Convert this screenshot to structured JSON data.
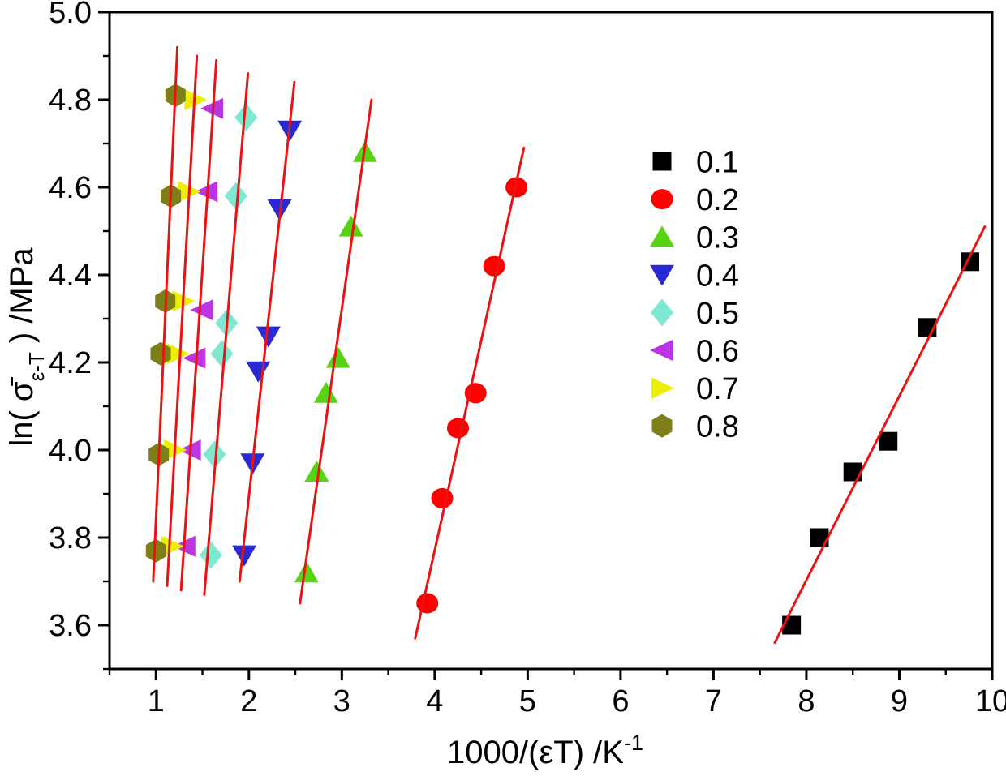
{
  "figure": {
    "background": "#ffffff"
  },
  "chart_data": {
    "type": "scatter",
    "title": "",
    "xlabel": "1000/(εT) /K⁻¹",
    "xlabel_parts": {
      "main": "1000/(εT) /K",
      "superscript": "-1"
    },
    "ylabel": "ln(σ̄ ε-T) /MPa",
    "ylabel_parts": {
      "prefix": "ln( ",
      "sigma_bar": "σ̄",
      "subscript": "ε-T",
      "suffix": " ) /MPa"
    },
    "xlim": [
      0.5,
      10
    ],
    "ylim": [
      3.5,
      5.0
    ],
    "x_major_ticks": [
      1,
      2,
      3,
      4,
      5,
      6,
      7,
      8,
      9,
      10
    ],
    "x_minor_step": 0.5,
    "y_major_ticks": [
      3.6,
      3.8,
      4.0,
      4.2,
      4.4,
      4.6,
      4.8,
      5.0
    ],
    "y_minor_step": 0.1,
    "grid": false,
    "legend_position": "inside-upper-right",
    "fit_line_color": "#ee1111",
    "axis_color": "#000000",
    "series": [
      {
        "label": "0.1",
        "marker": "square",
        "color": "#000000",
        "points": [
          [
            7.84,
            3.6
          ],
          [
            8.14,
            3.8
          ],
          [
            8.5,
            3.95
          ],
          [
            8.88,
            4.02
          ],
          [
            9.3,
            4.28
          ],
          [
            9.76,
            4.43
          ]
        ],
        "fit_line": [
          7.66,
          3.56,
          9.92,
          4.51
        ]
      },
      {
        "label": "0.2",
        "marker": "circle",
        "color": "#ff0000",
        "points": [
          [
            3.92,
            3.65
          ],
          [
            4.08,
            3.89
          ],
          [
            4.25,
            4.05
          ],
          [
            4.44,
            4.13
          ],
          [
            4.64,
            4.42
          ],
          [
            4.88,
            4.6
          ]
        ],
        "fit_line": [
          3.79,
          3.57,
          4.96,
          4.69
        ]
      },
      {
        "label": "0.3",
        "marker": "triangle-up",
        "color": "#58d313",
        "points": [
          [
            2.62,
            3.72
          ],
          [
            2.73,
            3.95
          ],
          [
            2.83,
            4.13
          ],
          [
            2.96,
            4.21
          ],
          [
            3.1,
            4.51
          ],
          [
            3.25,
            4.68
          ]
        ],
        "fit_line": [
          2.55,
          3.65,
          3.32,
          4.8
        ]
      },
      {
        "label": "0.4",
        "marker": "triangle-down",
        "color": "#2a2ad4",
        "points": [
          [
            1.95,
            3.76
          ],
          [
            2.04,
            3.97
          ],
          [
            2.1,
            4.18
          ],
          [
            2.21,
            4.26
          ],
          [
            2.33,
            4.55
          ],
          [
            2.44,
            4.73
          ]
        ],
        "fit_line": [
          1.9,
          3.7,
          2.49,
          4.84
        ]
      },
      {
        "label": "0.5",
        "marker": "diamond",
        "color": "#7fe8d0",
        "points": [
          [
            1.59,
            3.76
          ],
          [
            1.63,
            3.99
          ],
          [
            1.71,
            4.22
          ],
          [
            1.76,
            4.29
          ],
          [
            1.86,
            4.58
          ],
          [
            1.97,
            4.76
          ]
        ],
        "fit_line": [
          1.52,
          3.67,
          1.99,
          4.86
        ]
      },
      {
        "label": "0.6",
        "marker": "triangle-left",
        "color": "#bb35e3",
        "points": [
          [
            1.31,
            3.78
          ],
          [
            1.37,
            4.0
          ],
          [
            1.42,
            4.21
          ],
          [
            1.5,
            4.32
          ],
          [
            1.55,
            4.59
          ],
          [
            1.61,
            4.78
          ]
        ],
        "fit_line": [
          1.27,
          3.68,
          1.65,
          4.89
        ]
      },
      {
        "label": "0.7",
        "marker": "triangle-right",
        "color": "#eeee00",
        "points": [
          [
            1.17,
            3.78
          ],
          [
            1.2,
            4.0
          ],
          [
            1.23,
            4.22
          ],
          [
            1.29,
            4.34
          ],
          [
            1.35,
            4.59
          ],
          [
            1.42,
            4.8
          ]
        ],
        "fit_line": [
          1.12,
          3.69,
          1.44,
          4.9
        ]
      },
      {
        "label": "0.8",
        "marker": "hexagon",
        "color": "#7f7f1a",
        "points": [
          [
            1.0,
            3.77
          ],
          [
            1.03,
            3.99
          ],
          [
            1.05,
            4.22
          ],
          [
            1.1,
            4.34
          ],
          [
            1.16,
            4.58
          ],
          [
            1.21,
            4.81
          ]
        ],
        "fit_line": [
          0.97,
          3.7,
          1.23,
          4.92
        ]
      }
    ]
  }
}
